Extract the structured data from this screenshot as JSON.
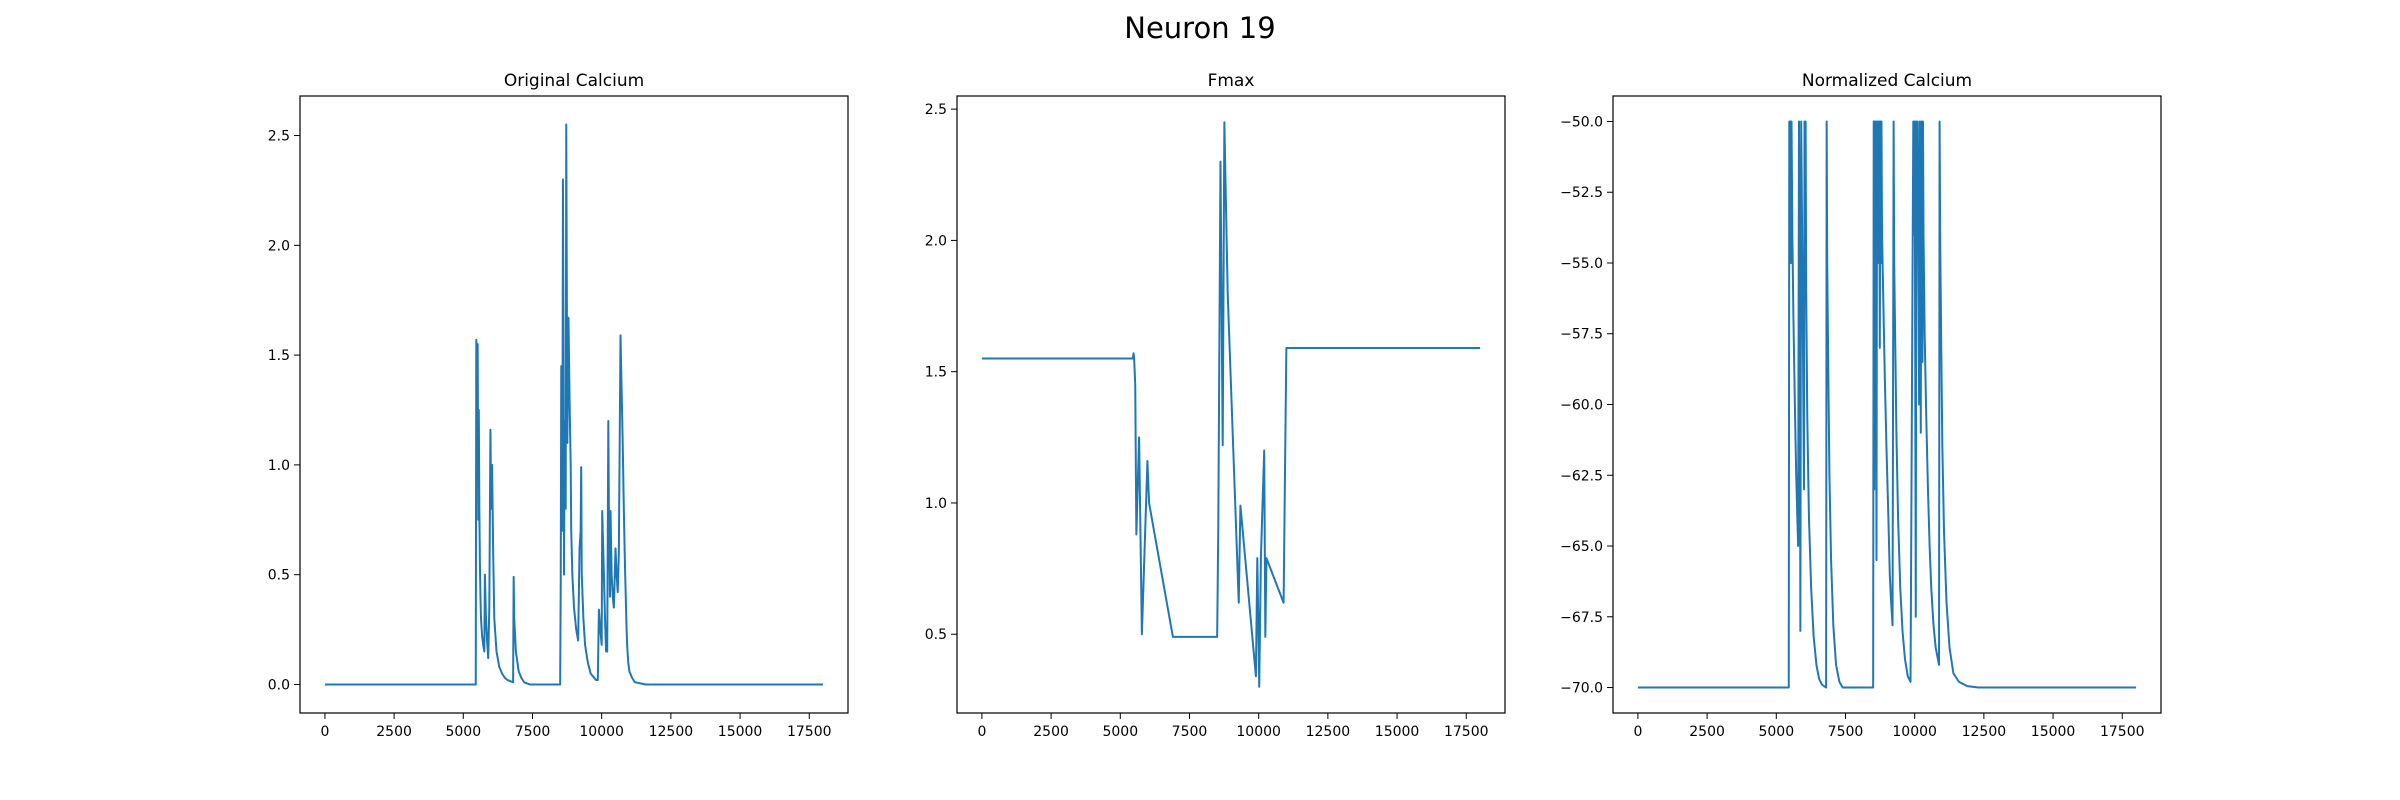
{
  "title": "Neuron 19",
  "line_color": "#1f77b4",
  "chart_data": [
    {
      "type": "line",
      "title": "Original Calcium",
      "xlim": [
        -900,
        18900
      ],
      "ylim": [
        -0.13,
        2.68
      ],
      "xticks": [
        0,
        2500,
        5000,
        7500,
        10000,
        12500,
        15000,
        17500
      ],
      "yticks": [
        0.0,
        0.5,
        1.0,
        1.5,
        2.0,
        2.5
      ],
      "ytick_labels": [
        "0.0",
        "0.5",
        "1.0",
        "1.5",
        "2.0",
        "2.5"
      ],
      "series": [
        {
          "x": [
            0,
            5450,
            5470,
            5500,
            5520,
            5540,
            5560,
            5580,
            5600,
            5620,
            5640,
            5680,
            5720,
            5760,
            5780,
            5820,
            5860,
            5900,
            5940,
            5980,
            6000,
            6020,
            6040,
            6080,
            6120,
            6200,
            6300,
            6400,
            6500,
            6600,
            6800,
            6820,
            6840,
            6900,
            7000,
            7100,
            7200,
            7400,
            8500,
            8520,
            8540,
            8560,
            8580,
            8600,
            8620,
            8640,
            8660,
            8700,
            8720,
            8760,
            8800,
            8840,
            8880,
            8900,
            8940,
            9000,
            9080,
            9150,
            9200,
            9240,
            9260,
            9280,
            9340,
            9400,
            9500,
            9600,
            9800,
            9860,
            9900,
            9950,
            10000,
            10020,
            10080,
            10120,
            10160,
            10200,
            10240,
            10260,
            10280,
            10300,
            10320,
            10360,
            10400,
            10440,
            10500,
            10540,
            10580,
            10620,
            10680,
            10760,
            10800,
            10840,
            10880,
            10900,
            10920,
            10960,
            11000,
            11100,
            11200,
            11400,
            11600,
            12000,
            12500,
            18000
          ],
          "y": [
            0.0,
            0.0,
            1.57,
            0.95,
            1.55,
            0.75,
            1.25,
            0.8,
            0.55,
            0.4,
            0.3,
            0.22,
            0.18,
            0.15,
            0.5,
            0.3,
            0.2,
            0.12,
            0.35,
            1.16,
            0.9,
            0.8,
            1.0,
            0.6,
            0.3,
            0.15,
            0.08,
            0.05,
            0.03,
            0.02,
            0.01,
            0.49,
            0.3,
            0.15,
            0.06,
            0.03,
            0.01,
            0.0,
            0.0,
            0.45,
            1.45,
            0.9,
            0.7,
            2.3,
            1.6,
            0.5,
            1.2,
            0.8,
            2.55,
            1.1,
            1.67,
            1.3,
            1.0,
            0.7,
            0.5,
            0.35,
            0.25,
            0.2,
            0.62,
            0.7,
            0.99,
            0.5,
            0.3,
            0.18,
            0.1,
            0.05,
            0.02,
            0.02,
            0.34,
            0.25,
            0.18,
            0.79,
            0.5,
            0.3,
            0.15,
            0.15,
            1.2,
            0.8,
            0.6,
            0.4,
            0.79,
            0.5,
            0.4,
            0.35,
            0.62,
            0.5,
            0.42,
            0.6,
            1.59,
            1.1,
            0.8,
            0.55,
            0.35,
            0.25,
            0.18,
            0.1,
            0.06,
            0.03,
            0.01,
            0.005,
            0.0,
            0.0,
            0.0,
            0.0
          ]
        }
      ]
    },
    {
      "type": "line",
      "title": "Fmax",
      "xlim": [
        -900,
        18900
      ],
      "ylim": [
        0.2,
        2.55
      ],
      "xticks": [
        0,
        2500,
        5000,
        7500,
        10000,
        12500,
        15000,
        17500
      ],
      "yticks": [
        0.5,
        1.0,
        1.5,
        2.0,
        2.5
      ],
      "ytick_labels": [
        "0.5",
        "1.0",
        "1.5",
        "2.0",
        "2.5"
      ],
      "series": [
        {
          "x": [
            0,
            5450,
            5480,
            5500,
            5540,
            5580,
            5680,
            5780,
            5980,
            6040,
            6900,
            8500,
            8540,
            8620,
            8700,
            8760,
            8880,
            9280,
            9340,
            9900,
            9950,
            10000,
            10020,
            10080,
            10200,
            10240,
            10280,
            10900,
            11000,
            18000
          ],
          "y": [
            1.55,
            1.55,
            1.57,
            1.55,
            1.45,
            0.88,
            1.25,
            0.5,
            1.16,
            1.0,
            0.49,
            0.49,
            0.9,
            2.3,
            1.22,
            2.45,
            1.8,
            0.62,
            0.99,
            0.34,
            0.79,
            0.45,
            0.3,
            0.79,
            1.2,
            0.49,
            0.79,
            0.62,
            1.59,
            1.59
          ]
        }
      ]
    },
    {
      "type": "line",
      "title": "Normalized Calcium",
      "xlim": [
        -900,
        18900
      ],
      "ylim": [
        -70.9,
        -49.1
      ],
      "xticks": [
        0,
        2500,
        5000,
        7500,
        10000,
        12500,
        15000,
        17500
      ],
      "yticks": [
        -70.0,
        -67.5,
        -65.0,
        -62.5,
        -60.0,
        -57.5,
        -55.0,
        -52.5,
        -50.0
      ],
      "ytick_labels": [
        "−70.0",
        "−67.5",
        "−65.0",
        "−62.5",
        "−60.0",
        "−57.5",
        "−55.0",
        "−52.5",
        "−50.0"
      ],
      "series": [
        {
          "x": [
            0,
            5450,
            5470,
            5490,
            5510,
            5530,
            5550,
            5580,
            5620,
            5680,
            5720,
            5760,
            5790,
            5820,
            5850,
            5870,
            5900,
            5950,
            6000,
            6020,
            6040,
            6060,
            6080,
            6120,
            6180,
            6260,
            6350,
            6450,
            6550,
            6650,
            6800,
            6820,
            6840,
            6880,
            6920,
            6980,
            7060,
            7160,
            7280,
            7400,
            8500,
            8520,
            8540,
            8560,
            8580,
            8600,
            8620,
            8640,
            8660,
            8680,
            8700,
            8720,
            8740,
            8760,
            8780,
            8800,
            8820,
            8860,
            8920,
            8980,
            9050,
            9100,
            9150,
            9200,
            9240,
            9260,
            9300,
            9340,
            9400,
            9480,
            9560,
            9650,
            9750,
            9850,
            9950,
            9980,
            10000,
            10020,
            10040,
            10060,
            10080,
            10100,
            10130,
            10160,
            10180,
            10200,
            10220,
            10240,
            10260,
            10280,
            10300,
            10320,
            10360,
            10420,
            10480,
            10540,
            10600,
            10680,
            10760,
            10840,
            10880,
            10900,
            10920,
            10960,
            11000,
            11060,
            11150,
            11260,
            11400,
            11600,
            11900,
            12300,
            18000
          ],
          "y": [
            -70.0,
            -70.0,
            -50.0,
            -55.0,
            -50.0,
            -55.0,
            -50.0,
            -54.0,
            -57.0,
            -60.5,
            -62.5,
            -64.0,
            -65.0,
            -50.0,
            -58.0,
            -68.0,
            -50.0,
            -56.0,
            -63.0,
            -50.0,
            -55.0,
            -50.0,
            -56.0,
            -60.5,
            -64.0,
            -66.5,
            -68.2,
            -69.2,
            -69.7,
            -69.9,
            -70.0,
            -50.0,
            -55.0,
            -59.0,
            -62.5,
            -65.5,
            -67.8,
            -69.2,
            -69.8,
            -70.0,
            -70.0,
            -50.0,
            -63.0,
            -50.0,
            -58.0,
            -50.0,
            -65.5,
            -50.0,
            -54.0,
            -50.0,
            -55.0,
            -50.0,
            -58.0,
            -50.0,
            -55.0,
            -50.0,
            -54.0,
            -56.0,
            -59.0,
            -61.5,
            -64.0,
            -66.0,
            -67.0,
            -67.8,
            -50.0,
            -55.0,
            -58.0,
            -61.0,
            -64.0,
            -66.5,
            -68.0,
            -69.0,
            -69.6,
            -69.8,
            -50.0,
            -54.0,
            -50.0,
            -58.5,
            -67.5,
            -50.0,
            -54.0,
            -50.0,
            -55.0,
            -60.0,
            -50.0,
            -54.0,
            -61.0,
            -50.0,
            -55.0,
            -58.5,
            -50.0,
            -54.0,
            -57.5,
            -60.5,
            -63.0,
            -65.0,
            -66.5,
            -67.8,
            -68.6,
            -69.0,
            -69.2,
            -50.0,
            -54.0,
            -58.0,
            -61.5,
            -64.5,
            -67.0,
            -68.6,
            -69.5,
            -69.8,
            -69.95,
            -70.0,
            -70.0
          ]
        }
      ]
    }
  ]
}
